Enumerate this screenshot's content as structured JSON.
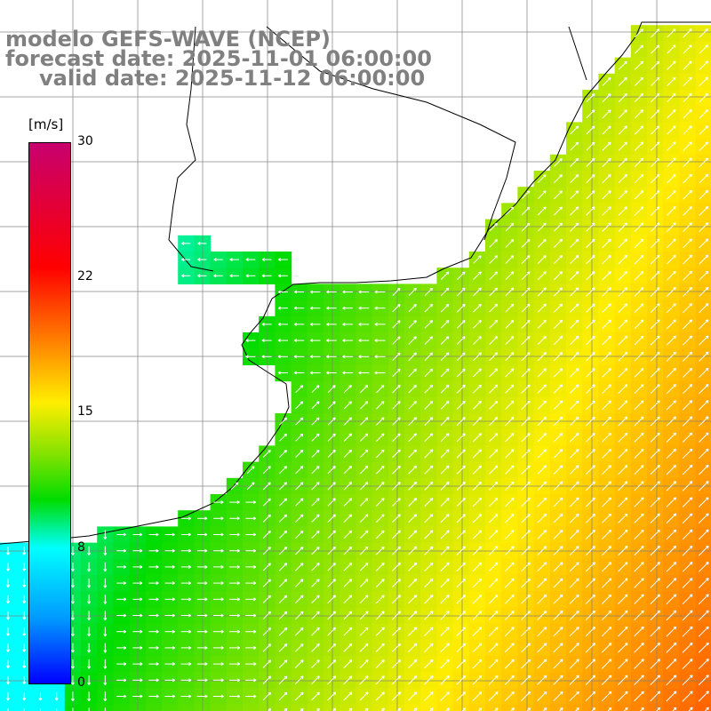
{
  "title": {
    "line1": "modelo GEFS-WAVE (NCEP)",
    "line2": "forecast date: 2025-11-01 06:00:00",
    "line3": "valid date: 2025-11-12 06:00:00"
  },
  "colorbar": {
    "units": "[m/s]",
    "ticks": [
      "30",
      "22",
      "15",
      "8",
      "0"
    ],
    "range": [
      0,
      30
    ],
    "colors": [
      "#0000ff",
      "#0099ff",
      "#00ffff",
      "#00dc00",
      "#7de200",
      "#ffee00",
      "#ff7a00",
      "#ff0000",
      "#c8006e"
    ]
  },
  "style": {
    "title_color": "#808080",
    "grid_color": "#808080",
    "coast_color": "#000000",
    "arrow_color": "#ffffff"
  }
}
